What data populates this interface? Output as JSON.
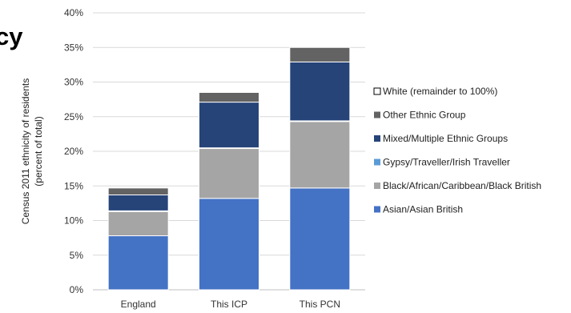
{
  "fragment_title": "cy",
  "chart_data": {
    "type": "bar",
    "stacked": true,
    "title": "",
    "categories": [
      "England",
      "This ICP",
      "This PCN"
    ],
    "ylabel_lines": [
      "Census 2011 ethnicity of residents",
      "(percent of total)"
    ],
    "ylim": [
      0,
      40
    ],
    "yticks": [
      0,
      5,
      10,
      15,
      20,
      25,
      30,
      35,
      40
    ],
    "ytick_labels": [
      "0%",
      "5%",
      "10%",
      "15%",
      "20%",
      "25%",
      "30%",
      "35%",
      "40%"
    ],
    "grid": true,
    "legend_position": "right",
    "series": [
      {
        "name": "Asian/Asian British",
        "color": "#4472c4",
        "values": [
          7.8,
          13.2,
          14.7
        ]
      },
      {
        "name": "Black/African/Caribbean/Black British",
        "color": "#a5a5a5",
        "values": [
          3.5,
          7.2,
          9.6
        ]
      },
      {
        "name": "Gypsy/Traveller/Irish Traveller",
        "color": "#5b9bd5",
        "values": [
          0.1,
          0.1,
          0.1
        ]
      },
      {
        "name": "Mixed/Multiple Ethnic Groups",
        "color": "#264478",
        "values": [
          2.3,
          6.6,
          8.5
        ]
      },
      {
        "name": "Other Ethnic Group",
        "color": "#636363",
        "values": [
          1.0,
          1.4,
          2.1
        ]
      }
    ],
    "remainder_series": {
      "name": "White (remainder to 100%)",
      "color": "#ffffff"
    },
    "legend_order": [
      "White (remainder to 100%)",
      "Other Ethnic Group",
      "Mixed/Multiple Ethnic Groups",
      "Gypsy/Traveller/Irish Traveller",
      "Black/African/Caribbean/Black British",
      "Asian/Asian British"
    ]
  }
}
